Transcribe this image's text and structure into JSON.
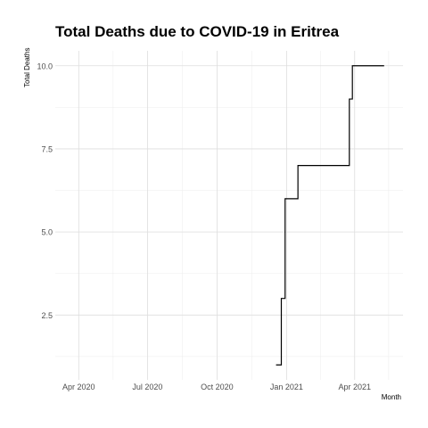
{
  "chart_data": {
    "type": "line",
    "title": "Total Deaths due to COVID-19 in Eritrea",
    "xlabel": "Month",
    "ylabel": "Total Deaths",
    "x_ticks": [
      {
        "date": "2020-04-01",
        "label": "Apr 2020"
      },
      {
        "date": "2020-07-01",
        "label": "Jul 2020"
      },
      {
        "date": "2020-10-01",
        "label": "Oct 2020"
      },
      {
        "date": "2021-01-01",
        "label": "Jan 2021"
      },
      {
        "date": "2021-04-01",
        "label": "Apr 2021"
      }
    ],
    "y_ticks": [
      {
        "value": 2.5,
        "label": "2.5"
      },
      {
        "value": 5.0,
        "label": "5.0"
      },
      {
        "value": 7.5,
        "label": "7.5"
      },
      {
        "value": 10.0,
        "label": "10.0"
      }
    ],
    "xlim": [
      "2020-03-01",
      "2021-06-04"
    ],
    "ylim": [
      0.55,
      10.45
    ],
    "grid": true,
    "line_color": "#000000",
    "series": [
      {
        "points": [
          {
            "x": "2020-12-18",
            "y": 1
          },
          {
            "x": "2020-12-25",
            "y": 1
          },
          {
            "x": "2020-12-25",
            "y": 3
          },
          {
            "x": "2020-12-30",
            "y": 3
          },
          {
            "x": "2020-12-30",
            "y": 6
          },
          {
            "x": "2021-01-16",
            "y": 6
          },
          {
            "x": "2021-01-16",
            "y": 7
          },
          {
            "x": "2021-03-25",
            "y": 7
          },
          {
            "x": "2021-03-25",
            "y": 9
          },
          {
            "x": "2021-03-29",
            "y": 9
          },
          {
            "x": "2021-03-29",
            "y": 10
          },
          {
            "x": "2021-05-10",
            "y": 10
          }
        ]
      }
    ]
  }
}
